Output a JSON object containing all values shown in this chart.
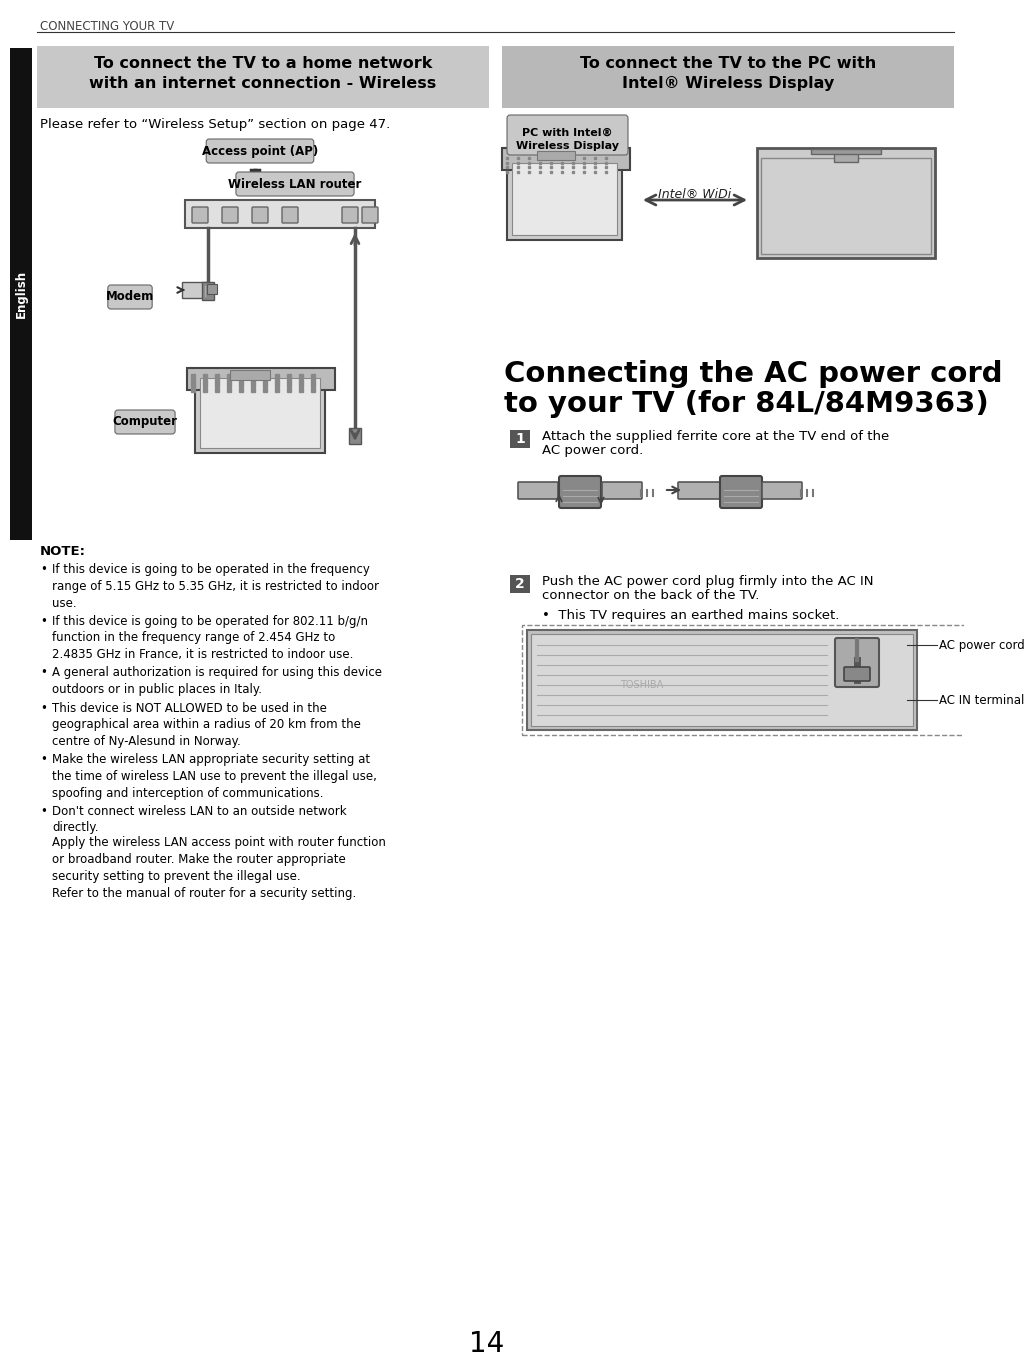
{
  "page_bg": "#ffffff",
  "header_text": "CONNECTING YOUR TV",
  "english_sidebar_color": "#111111",
  "english_text": "English",
  "left_box_title_line1": "To connect the TV to a home network",
  "left_box_title_line2": "with an internet connection - Wireless",
  "left_box_bg": "#c8c8c8",
  "right_box_title_line1": "To connect the TV to the PC with",
  "right_box_title_line2": "Intel® Wireless Display",
  "right_box_bg": "#b8b8b8",
  "please_refer_text": "Please refer to “Wireless Setup” section on page 47.",
  "label_ap": "Access point (AP)",
  "label_router": "Wireless LAN router",
  "label_modem": "Modem",
  "label_computer": "Computer",
  "label_pc_intel_line1": "PC with Intel®",
  "label_pc_intel_line2": "Wireless Display",
  "label_intel_widi": "Intel® WiDi",
  "note_title": "NOTE:",
  "note_bullet1": "If this device is going to be operated in the frequency\nrange of 5.15 GHz to 5.35 GHz, it is restricted to indoor\nuse.",
  "note_bullet2": "If this device is going to be operated for 802.11 b/g/n\nfunction in the frequency range of 2.454 GHz to\n2.4835 GHz in France, it is restricted to indoor use.",
  "note_bullet3": "A general authorization is required for using this device\noutdoors or in public places in Italy.",
  "note_bullet4": "This device is NOT ALLOWED to be used in the\ngeographical area within a radius of 20 km from the\ncentre of Ny-Alesund in Norway.",
  "note_bullet5": "Make the wireless LAN appropriate security setting at\nthe time of wireless LAN use to prevent the illegal use,\nspoofing and interception of communications.",
  "note_bullet6a": "Don't connect wireless LAN to an outside network\ndirectly.",
  "note_bullet6b": "Apply the wireless LAN access point with router function\nor broadband router. Make the router appropriate\nsecurity setting to prevent the illegal use.\nRefer to the manual of router for a security setting.",
  "ac_section_line1": "Connecting the AC power cord",
  "ac_section_line2": "to your TV (for 84L/84M9363)",
  "step1_text_line1": "Attach the supplied ferrite core at the TV end of the",
  "step1_text_line2": "AC power cord.",
  "step2_text_line1": "Push the AC power cord plug firmly into the AC IN",
  "step2_text_line2": "connector on the back of the TV.",
  "step2_note": "•  This TV requires an earthed mains socket.",
  "ac_label1": "AC power cord",
  "ac_label2": "AC IN terminal",
  "page_number": "14",
  "label_bg": "#c8c8c8",
  "label_bg_dark": "#aaaaaa"
}
